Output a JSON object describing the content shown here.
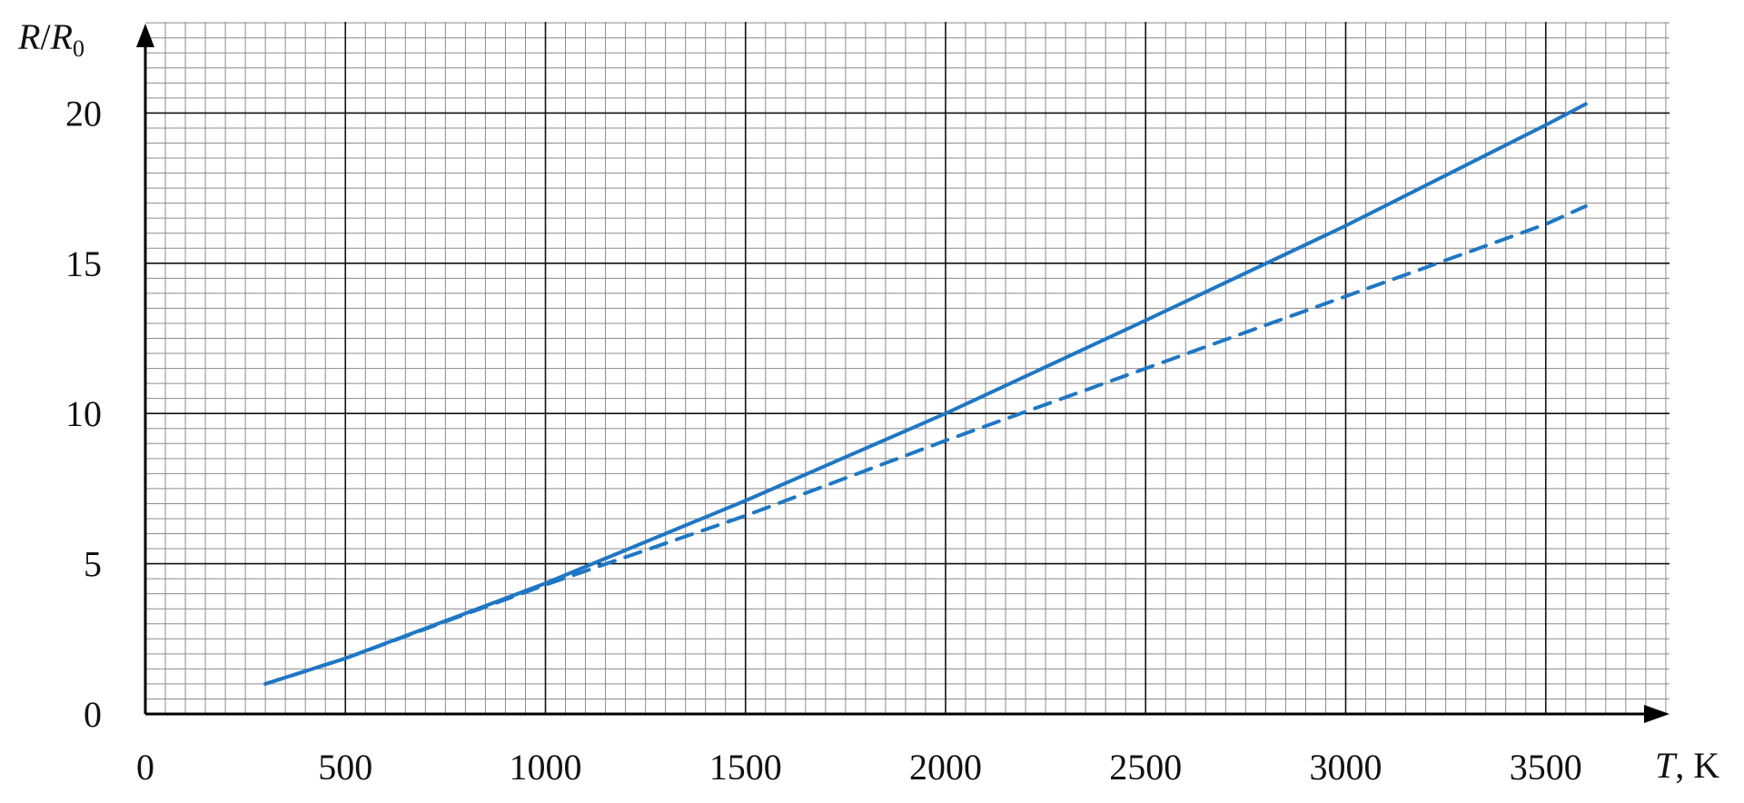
{
  "chart_data": {
    "type": "line",
    "xlabel": {
      "var": "T",
      "unit": ", K"
    },
    "ylabel": {
      "var1": "R",
      "slash": "/",
      "var2": "R",
      "sub": "0"
    },
    "xlim": [
      0,
      3800
    ],
    "ylim": [
      0,
      23
    ],
    "x_ticks": [
      0,
      500,
      1000,
      1500,
      2000,
      2500,
      3000,
      3500
    ],
    "y_ticks": [
      0,
      5,
      10,
      15,
      20
    ],
    "x_tick_labels": [
      "0",
      "500",
      "1000",
      "1500",
      "2000",
      "2500",
      "3000",
      "3500"
    ],
    "y_tick_labels": [
      "0",
      "5",
      "10",
      "15",
      "20"
    ],
    "grid": {
      "major_x": 500,
      "major_y": 5,
      "minor_x": 50,
      "minor_y": 0.5
    },
    "colors": {
      "series": "#1f77c4",
      "major_grid": "#111111",
      "minor_grid": "#8c8c8c",
      "axis": "#000000"
    },
    "series": [
      {
        "style": "solid",
        "x": [
          300,
          500,
          1000,
          1500,
          2000,
          2500,
          3000,
          3500,
          3600
        ],
        "values": [
          1.0,
          1.85,
          4.35,
          7.1,
          10.0,
          13.1,
          16.25,
          19.6,
          20.3
        ]
      },
      {
        "style": "dashed",
        "x": [
          300,
          500,
          1000,
          1500,
          2000,
          2500,
          3000,
          3500,
          3600
        ],
        "values": [
          1.0,
          1.85,
          4.3,
          6.6,
          9.1,
          11.5,
          13.9,
          16.3,
          16.9
        ]
      }
    ]
  }
}
